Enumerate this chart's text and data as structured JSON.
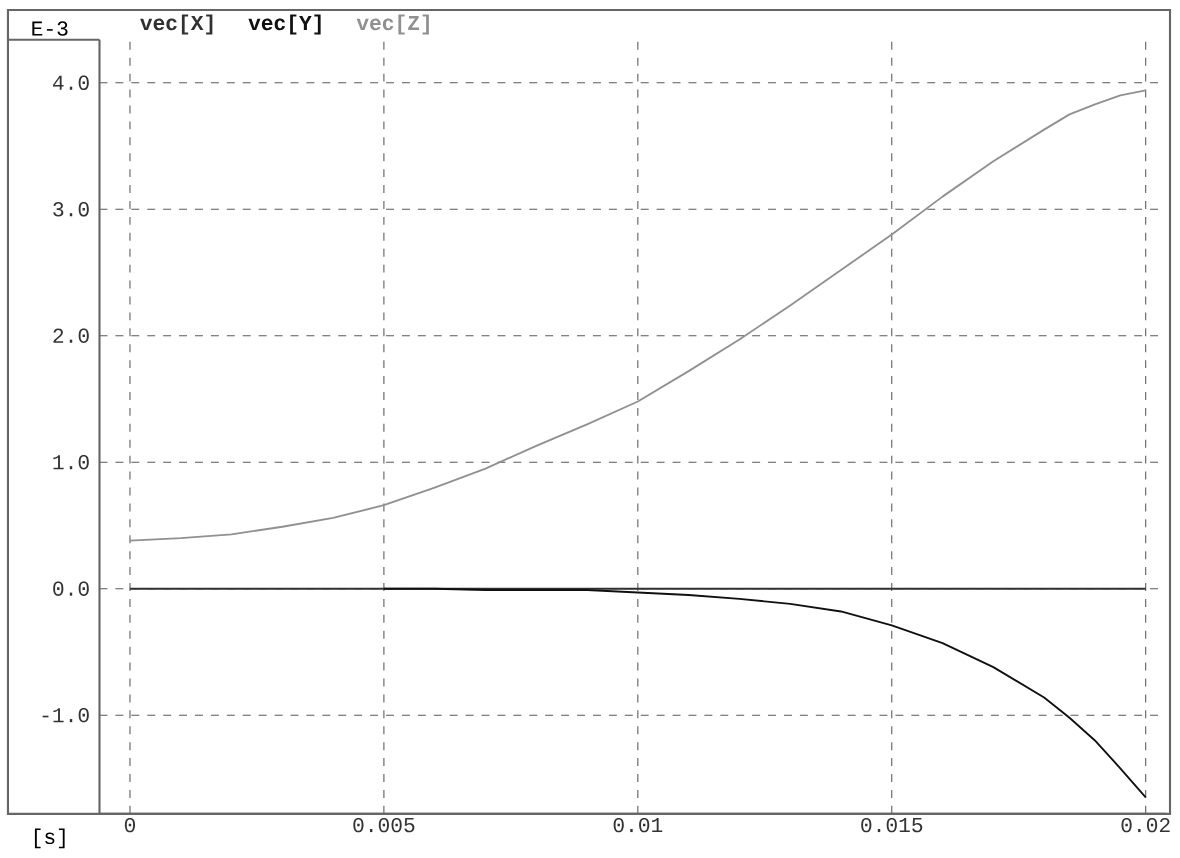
{
  "chart_data": {
    "type": "line",
    "ylabel": "E-3",
    "xlabel": "[s]",
    "x": [
      0,
      0.001,
      0.002,
      0.003,
      0.004,
      0.005,
      0.006,
      0.007,
      0.008,
      0.009,
      0.01,
      0.011,
      0.012,
      0.013,
      0.014,
      0.015,
      0.016,
      0.017,
      0.018,
      0.0185,
      0.019,
      0.0195,
      0.02
    ],
    "series": [
      {
        "name": "vec[X]",
        "color": "#303030",
        "values": [
          0,
          0,
          0,
          0,
          0,
          0,
          0,
          0,
          0,
          0,
          0,
          0,
          0,
          0,
          0,
          0,
          0,
          0,
          0,
          0,
          0,
          0,
          0
        ]
      },
      {
        "name": "vec[Y]",
        "color": "#101010",
        "values": [
          null,
          null,
          null,
          null,
          null,
          0,
          0,
          -0.01,
          -0.01,
          -0.01,
          -0.03,
          -0.05,
          -0.08,
          -0.12,
          -0.18,
          -0.29,
          -0.43,
          -0.62,
          -0.86,
          -1.02,
          -1.2,
          -1.42,
          -1.65
        ]
      },
      {
        "name": "vec[Z]",
        "color": "#909090",
        "values": [
          0.38,
          0.4,
          0.43,
          0.49,
          0.56,
          0.66,
          0.8,
          0.95,
          1.13,
          1.3,
          1.48,
          1.72,
          1.97,
          2.24,
          2.52,
          2.8,
          3.1,
          3.38,
          3.63,
          3.75,
          3.83,
          3.9,
          3.94
        ]
      }
    ],
    "xlim": [
      -0.0006,
      0.0204
    ],
    "ylim": [
      -1.78,
      4.34
    ],
    "xticks": [
      0,
      0.005,
      0.01,
      0.015,
      0.02
    ],
    "yticks": [
      {
        "value": -1,
        "label": "-1.0"
      },
      {
        "value": 0,
        "label": "0.0"
      },
      {
        "value": 1,
        "label": "1.0"
      },
      {
        "value": 2,
        "label": "2.0"
      },
      {
        "value": 3,
        "label": "3.0"
      },
      {
        "value": 4,
        "label": "4.0"
      }
    ],
    "grid": true,
    "legend": "top left",
    "marker": "none",
    "line_style": "solid"
  }
}
